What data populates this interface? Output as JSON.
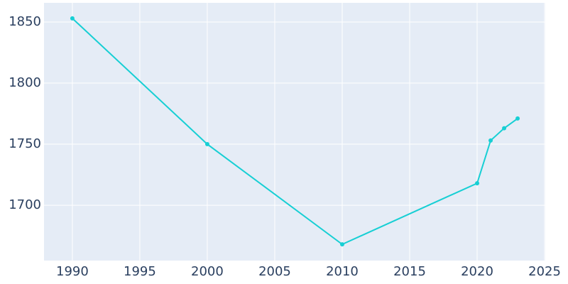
{
  "chart_data": {
    "type": "line",
    "x": [
      1990,
      2000,
      2010,
      2020,
      2021,
      2022,
      2023
    ],
    "series": [
      {
        "color": "#17cfd4",
        "values": [
          1853,
          1750,
          1668,
          1718,
          1753,
          1763,
          1771
        ]
      }
    ],
    "xlim": [
      1987.9,
      2025.05
    ],
    "xticks": [
      1990,
      1995,
      2000,
      2005,
      2010,
      2015,
      2020,
      2025
    ],
    "ylim": [
      1654.7,
      1865.7
    ],
    "yticks": [
      1700,
      1750,
      1800,
      1850
    ],
    "grid": true,
    "background": "#e5ecf6"
  }
}
